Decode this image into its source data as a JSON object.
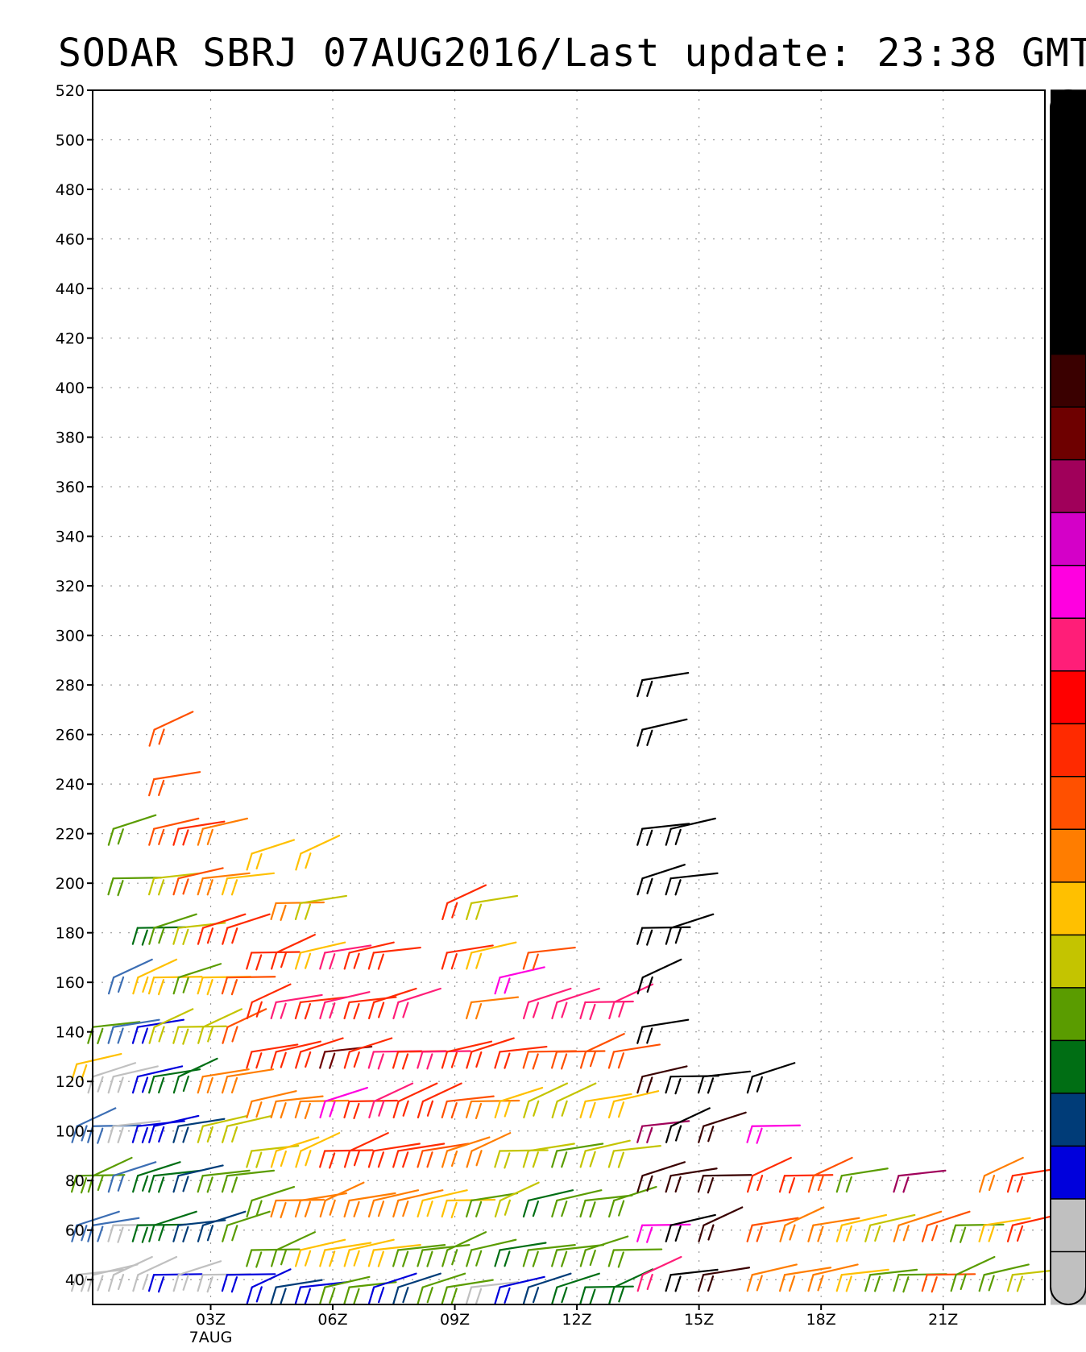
{
  "title": "SODAR SBRJ 07AUG2016/Last update: 23:38 GMT",
  "chart_data": {
    "type": "wind-barb",
    "title": "SODAR SBRJ 07AUG2016/Last update: 23:38 GMT",
    "xlabel": "",
    "ylabel": "",
    "x_unit": "hour UTC",
    "y_unit": "m",
    "xlim": [
      0.1,
      23.5
    ],
    "ylim": [
      30,
      520
    ],
    "grid": true,
    "y_ticks": [
      40,
      60,
      80,
      100,
      120,
      140,
      160,
      180,
      200,
      220,
      240,
      260,
      280,
      300,
      320,
      340,
      360,
      380,
      400,
      420,
      440,
      460,
      480,
      500,
      520
    ],
    "x_ticks": [
      {
        "hour": 3,
        "label": "03Z",
        "date_label": "7AUG"
      },
      {
        "hour": 6,
        "label": "06Z"
      },
      {
        "hour": 9,
        "label": "09Z"
      },
      {
        "hour": 12,
        "label": "12Z"
      },
      {
        "hour": 15,
        "label": "15Z"
      },
      {
        "hour": 18,
        "label": "18Z"
      },
      {
        "hour": 21,
        "label": "21Z"
      }
    ],
    "colorbar": {
      "placement": "right",
      "colors": [
        "#000000",
        "#000000",
        "#000000",
        "#000000",
        "#000000",
        "#3a0000",
        "#6e0000",
        "#a0005a",
        "#d400c8",
        "#ff00e0",
        "#ff1e78",
        "#ff0000",
        "#ff2a00",
        "#ff5000",
        "#ff7d00",
        "#ffc000",
        "#c4c400",
        "#5a9c00",
        "#006e14",
        "#003c78",
        "#0000dc",
        "#c0c0c0",
        "#c0c0c0"
      ]
    },
    "time_columns": [
      {
        "t": 0.1,
        "barbs": [
          [
            125,
            "#ffc000"
          ],
          [
            40,
            "#c0c0c0"
          ],
          [
            60,
            "#3c6eb4"
          ],
          [
            80,
            "#5a9c00"
          ],
          [
            100,
            "#3c6eb4"
          ]
        ]
      },
      {
        "t": 0.5,
        "barbs": [
          [
            140,
            "#5a9c00"
          ],
          [
            120,
            "#c0c0c0"
          ],
          [
            100,
            "#3c6eb4"
          ],
          [
            80,
            "#5a9c00"
          ],
          [
            60,
            "#3c6eb4"
          ],
          [
            40,
            "#c0c0c0"
          ]
        ]
      },
      {
        "t": 1.0,
        "barbs": [
          [
            220,
            "#5a9c00"
          ],
          [
            200,
            "#5a9c00"
          ],
          [
            160,
            "#3c6eb4"
          ],
          [
            140,
            "#3c6eb4"
          ],
          [
            120,
            "#c0c0c0"
          ],
          [
            100,
            "#c0c0c0"
          ],
          [
            80,
            "#3c6eb4"
          ],
          [
            60,
            "#c0c0c0"
          ],
          [
            40,
            "#c0c0c0"
          ]
        ]
      },
      {
        "t": 1.6,
        "barbs": [
          [
            180,
            "#006e14"
          ],
          [
            160,
            "#ffc000"
          ],
          [
            140,
            "#0000dc"
          ],
          [
            120,
            "#0000dc"
          ],
          [
            100,
            "#0000dc"
          ],
          [
            80,
            "#006e14"
          ],
          [
            60,
            "#006e14"
          ],
          [
            40,
            "#c0c0c0"
          ]
        ]
      },
      {
        "t": 2.0,
        "barbs": [
          [
            260,
            "#ff5000"
          ],
          [
            240,
            "#ff5000"
          ],
          [
            220,
            "#ff5000"
          ],
          [
            200,
            "#c4c400"
          ],
          [
            180,
            "#5a9c00"
          ],
          [
            160,
            "#ffc000"
          ],
          [
            140,
            "#c4c400"
          ],
          [
            120,
            "#006e14"
          ],
          [
            100,
            "#0000dc"
          ],
          [
            80,
            "#006e14"
          ],
          [
            60,
            "#006e14"
          ],
          [
            40,
            "#0000dc"
          ]
        ]
      },
      {
        "t": 2.6,
        "barbs": [
          [
            220,
            "#ff2a00"
          ],
          [
            200,
            "#ff5000"
          ],
          [
            180,
            "#c4c400"
          ],
          [
            160,
            "#5a9c00"
          ],
          [
            140,
            "#c4c400"
          ],
          [
            120,
            "#006e14"
          ],
          [
            100,
            "#003c78"
          ],
          [
            80,
            "#003c78"
          ],
          [
            60,
            "#003c78"
          ],
          [
            40,
            "#c0c0c0"
          ]
        ]
      },
      {
        "t": 3.2,
        "barbs": [
          [
            220,
            "#ff7d00"
          ],
          [
            200,
            "#ff7d00"
          ],
          [
            180,
            "#ff2a00"
          ],
          [
            160,
            "#ffc000"
          ],
          [
            140,
            "#c4c400"
          ],
          [
            120,
            "#ff7d00"
          ],
          [
            100,
            "#c4c400"
          ],
          [
            80,
            "#5a9c00"
          ],
          [
            60,
            "#003c78"
          ],
          [
            40,
            "#c0c0c0"
          ]
        ]
      },
      {
        "t": 3.8,
        "barbs": [
          [
            200,
            "#ffc000"
          ],
          [
            180,
            "#ff2a00"
          ],
          [
            160,
            "#ff5000"
          ],
          [
            140,
            "#ff5000"
          ],
          [
            120,
            "#ff7d00"
          ],
          [
            100,
            "#c4c400"
          ],
          [
            80,
            "#5a9c00"
          ],
          [
            60,
            "#5a9c00"
          ],
          [
            40,
            "#0000dc"
          ]
        ]
      },
      {
        "t": 4.4,
        "barbs": [
          [
            210,
            "#ffc000"
          ],
          [
            170,
            "#ff2a00"
          ],
          [
            150,
            "#ff2a00"
          ],
          [
            130,
            "#ff2a00"
          ],
          [
            110,
            "#ff7d00"
          ],
          [
            90,
            "#c4c400"
          ],
          [
            70,
            "#5a9c00"
          ],
          [
            50,
            "#5a9c00"
          ],
          [
            35,
            "#0000dc"
          ]
        ]
      },
      {
        "t": 5.0,
        "barbs": [
          [
            190,
            "#ff7d00"
          ],
          [
            170,
            "#ff2a00"
          ],
          [
            150,
            "#ff1e78"
          ],
          [
            130,
            "#ff2a00"
          ],
          [
            110,
            "#ff7d00"
          ],
          [
            90,
            "#ffc000"
          ],
          [
            70,
            "#ff7d00"
          ],
          [
            50,
            "#5a9c00"
          ],
          [
            35,
            "#003c78"
          ]
        ]
      },
      {
        "t": 5.6,
        "barbs": [
          [
            210,
            "#ffc000"
          ],
          [
            190,
            "#c4c400"
          ],
          [
            170,
            "#ffc000"
          ],
          [
            150,
            "#ff2a00"
          ],
          [
            130,
            "#ff2a00"
          ],
          [
            110,
            "#ff7d00"
          ],
          [
            90,
            "#ffc000"
          ],
          [
            70,
            "#ff7d00"
          ],
          [
            50,
            "#ffc000"
          ],
          [
            35,
            "#0000dc"
          ]
        ]
      },
      {
        "t": 6.2,
        "barbs": [
          [
            170,
            "#ff1e78"
          ],
          [
            150,
            "#ff1e78"
          ],
          [
            130,
            "#6e0000"
          ],
          [
            110,
            "#ff00e0"
          ],
          [
            90,
            "#ff2a00"
          ],
          [
            70,
            "#ff7d00"
          ],
          [
            50,
            "#ffc000"
          ],
          [
            35,
            "#5a9c00"
          ]
        ]
      },
      {
        "t": 6.8,
        "barbs": [
          [
            170,
            "#ff2a00"
          ],
          [
            150,
            "#ff2a00"
          ],
          [
            130,
            "#ff2a00"
          ],
          [
            110,
            "#ff2a00"
          ],
          [
            90,
            "#ff2a00"
          ],
          [
            70,
            "#ff7d00"
          ],
          [
            50,
            "#ffc000"
          ],
          [
            35,
            "#5a9c00"
          ]
        ]
      },
      {
        "t": 7.4,
        "barbs": [
          [
            170,
            "#ff2a00"
          ],
          [
            150,
            "#ff2a00"
          ],
          [
            130,
            "#ff1e78"
          ],
          [
            110,
            "#ff1e78"
          ],
          [
            90,
            "#ff2a00"
          ],
          [
            70,
            "#ff7d00"
          ],
          [
            50,
            "#ffc000"
          ],
          [
            35,
            "#0000dc"
          ]
        ]
      },
      {
        "t": 8.0,
        "barbs": [
          [
            150,
            "#ff1e78"
          ],
          [
            130,
            "#ff2a00"
          ],
          [
            110,
            "#ff2a00"
          ],
          [
            90,
            "#ff2a00"
          ],
          [
            70,
            "#ff7d00"
          ],
          [
            50,
            "#5a9c00"
          ],
          [
            35,
            "#003c78"
          ]
        ]
      },
      {
        "t": 8.6,
        "barbs": [
          [
            130,
            "#ff1e78"
          ],
          [
            110,
            "#ff2a00"
          ],
          [
            90,
            "#ff5000"
          ],
          [
            70,
            "#ffc000"
          ],
          [
            50,
            "#5a9c00"
          ],
          [
            35,
            "#5a9c00"
          ]
        ]
      },
      {
        "t": 9.2,
        "barbs": [
          [
            190,
            "#ff2a00"
          ],
          [
            170,
            "#ff2a00"
          ],
          [
            130,
            "#ff2a00"
          ],
          [
            110,
            "#ff5000"
          ],
          [
            90,
            "#ff7d00"
          ],
          [
            70,
            "#ffc000"
          ],
          [
            50,
            "#5a9c00"
          ],
          [
            35,
            "#5a9c00"
          ]
        ]
      },
      {
        "t": 9.8,
        "barbs": [
          [
            190,
            "#c4c400"
          ],
          [
            170,
            "#ffc000"
          ],
          [
            150,
            "#ff7d00"
          ],
          [
            130,
            "#ff2a00"
          ],
          [
            110,
            "#ff7d00"
          ],
          [
            90,
            "#ff7d00"
          ],
          [
            70,
            "#5a9c00"
          ],
          [
            50,
            "#5a9c00"
          ],
          [
            35,
            "#c0c0c0"
          ]
        ]
      },
      {
        "t": 10.5,
        "barbs": [
          [
            160,
            "#ff00e0"
          ],
          [
            130,
            "#ff2a00"
          ],
          [
            110,
            "#ffc000"
          ],
          [
            90,
            "#c4c400"
          ],
          [
            70,
            "#c4c400"
          ],
          [
            50,
            "#006e14"
          ],
          [
            35,
            "#0000dc"
          ]
        ]
      },
      {
        "t": 11.2,
        "barbs": [
          [
            170,
            "#ff5000"
          ],
          [
            150,
            "#ff1e78"
          ],
          [
            130,
            "#ff5000"
          ],
          [
            110,
            "#c4c400"
          ],
          [
            90,
            "#c4c400"
          ],
          [
            70,
            "#006e14"
          ],
          [
            50,
            "#5a9c00"
          ],
          [
            35,
            "#003c78"
          ]
        ]
      },
      {
        "t": 11.9,
        "barbs": [
          [
            150,
            "#ff1e78"
          ],
          [
            130,
            "#ff5000"
          ],
          [
            110,
            "#c4c400"
          ],
          [
            90,
            "#5a9c00"
          ],
          [
            70,
            "#5a9c00"
          ],
          [
            50,
            "#5a9c00"
          ],
          [
            35,
            "#006e14"
          ]
        ]
      },
      {
        "t": 12.6,
        "barbs": [
          [
            150,
            "#ff1e78"
          ],
          [
            130,
            "#ff5000"
          ],
          [
            110,
            "#ffc000"
          ],
          [
            90,
            "#c4c400"
          ],
          [
            70,
            "#5a9c00"
          ],
          [
            50,
            "#5a9c00"
          ],
          [
            35,
            "#006e14"
          ]
        ]
      },
      {
        "t": 13.3,
        "barbs": [
          [
            150,
            "#ff1e78"
          ],
          [
            130,
            "#ff5000"
          ],
          [
            110,
            "#ffc000"
          ],
          [
            90,
            "#c4c400"
          ],
          [
            70,
            "#5a9c00"
          ],
          [
            50,
            "#5a9c00"
          ],
          [
            35,
            "#006e14"
          ]
        ]
      },
      {
        "t": 14.0,
        "barbs": [
          [
            280,
            "#000000"
          ],
          [
            260,
            "#000000"
          ],
          [
            220,
            "#000000"
          ],
          [
            200,
            "#000000"
          ],
          [
            180,
            "#000000"
          ],
          [
            160,
            "#000000"
          ],
          [
            140,
            "#000000"
          ],
          [
            120,
            "#3a0000"
          ],
          [
            100,
            "#a0005a"
          ],
          [
            80,
            "#3a0000"
          ],
          [
            60,
            "#ff00e0"
          ],
          [
            40,
            "#ff1e78"
          ]
        ]
      },
      {
        "t": 14.7,
        "barbs": [
          [
            220,
            "#000000"
          ],
          [
            200,
            "#000000"
          ],
          [
            180,
            "#000000"
          ],
          [
            120,
            "#000000"
          ],
          [
            100,
            "#000000"
          ],
          [
            80,
            "#3a0000"
          ],
          [
            60,
            "#000000"
          ],
          [
            40,
            "#000000"
          ]
        ]
      },
      {
        "t": 15.5,
        "barbs": [
          [
            120,
            "#000000"
          ],
          [
            100,
            "#3a0000"
          ],
          [
            80,
            "#3a0000"
          ],
          [
            60,
            "#3a0000"
          ],
          [
            40,
            "#3a0000"
          ]
        ]
      },
      {
        "t": 16.7,
        "barbs": [
          [
            120,
            "#000000"
          ],
          [
            100,
            "#ff00e0"
          ],
          [
            80,
            "#ff2a00"
          ],
          [
            60,
            "#ff5000"
          ],
          [
            40,
            "#ff7d00"
          ]
        ]
      },
      {
        "t": 17.5,
        "barbs": [
          [
            80,
            "#ff2a00"
          ],
          [
            60,
            "#ff7d00"
          ],
          [
            40,
            "#ff7d00"
          ]
        ]
      },
      {
        "t": 18.2,
        "barbs": [
          [
            80,
            "#ff5000"
          ],
          [
            60,
            "#ff7d00"
          ],
          [
            40,
            "#ff7d00"
          ]
        ]
      },
      {
        "t": 18.9,
        "barbs": [
          [
            80,
            "#5a9c00"
          ],
          [
            60,
            "#ffc000"
          ],
          [
            40,
            "#ffc000"
          ]
        ]
      },
      {
        "t": 19.6,
        "barbs": [
          [
            60,
            "#c4c400"
          ],
          [
            40,
            "#5a9c00"
          ]
        ]
      },
      {
        "t": 20.3,
        "barbs": [
          [
            80,
            "#a0005a"
          ],
          [
            60,
            "#ff7d00"
          ],
          [
            40,
            "#5a9c00"
          ]
        ]
      },
      {
        "t": 21.0,
        "barbs": [
          [
            60,
            "#ff5000"
          ],
          [
            40,
            "#ff5000"
          ]
        ]
      },
      {
        "t": 21.7,
        "barbs": [
          [
            60,
            "#5a9c00"
          ],
          [
            40,
            "#5a9c00"
          ]
        ]
      },
      {
        "t": 22.4,
        "barbs": [
          [
            80,
            "#ff7d00"
          ],
          [
            60,
            "#ffc000"
          ],
          [
            40,
            "#5a9c00"
          ]
        ]
      },
      {
        "t": 23.1,
        "barbs": [
          [
            80,
            "#ff2a00"
          ],
          [
            60,
            "#ff2a00"
          ],
          [
            40,
            "#c4c400"
          ]
        ]
      }
    ]
  }
}
